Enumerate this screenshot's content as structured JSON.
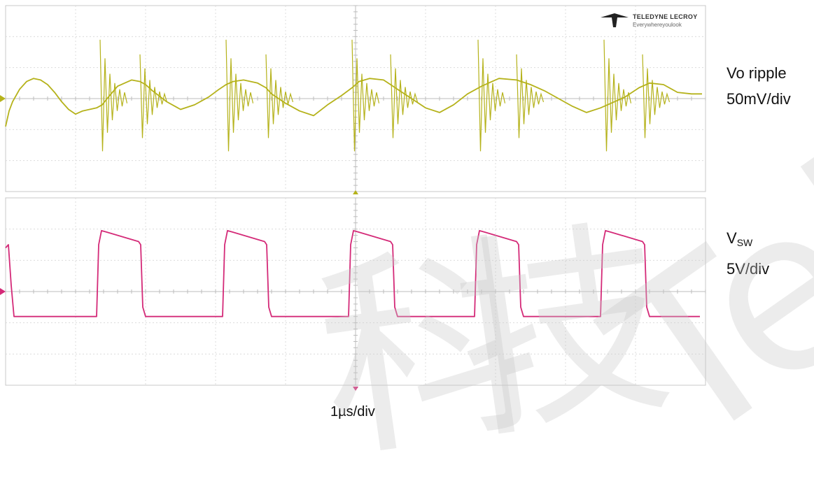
{
  "chart_data": {
    "type": "line",
    "grid": true,
    "divisions": {
      "x": 10,
      "y_per_panel": 6
    },
    "time_scale": "1µs/div",
    "panels": [
      {
        "name_main": "Vo ripple",
        "name_sub": "",
        "scale": "50mV/div",
        "color": "#b5b21a",
        "series": {
          "x_div": [
            0,
            0.05,
            0.1,
            0.2,
            0.3,
            0.4,
            0.5,
            0.6,
            0.7,
            0.8,
            0.9,
            1.0,
            1.1,
            1.2,
            1.3,
            1.38,
            1.45,
            1.6,
            1.8,
            1.92,
            2.0,
            2.1,
            2.3,
            2.5,
            2.7,
            2.9,
            3.05,
            3.15,
            3.25,
            3.4,
            3.6,
            3.72,
            3.8,
            4.0,
            4.2,
            4.4,
            4.6,
            4.8,
            4.95,
            5.05,
            5.2,
            5.4,
            5.5,
            5.6,
            5.8,
            6.0,
            6.2,
            6.4,
            6.6,
            6.8,
            6.95,
            7.05,
            7.3,
            7.5,
            7.7,
            7.9,
            8.1,
            8.3,
            8.5,
            8.65,
            8.85,
            9.05,
            9.2,
            9.4,
            9.6,
            9.8,
            9.95
          ],
          "y_div": [
            -0.9,
            -0.4,
            -0.1,
            0.3,
            0.55,
            0.65,
            0.6,
            0.45,
            0.2,
            -0.1,
            -0.35,
            -0.5,
            -0.4,
            -0.35,
            -0.3,
            -0.2,
            0.0,
            0.4,
            0.6,
            0.55,
            0.45,
            0.25,
            -0.1,
            -0.35,
            -0.2,
            0.05,
            0.3,
            0.45,
            0.55,
            0.6,
            0.5,
            0.35,
            0.15,
            -0.15,
            -0.4,
            -0.55,
            -0.2,
            0.1,
            0.35,
            0.55,
            0.65,
            0.6,
            0.45,
            0.3,
            0.0,
            -0.3,
            -0.45,
            -0.2,
            0.15,
            0.4,
            0.55,
            0.65,
            0.6,
            0.45,
            0.25,
            0.0,
            -0.25,
            -0.45,
            -0.3,
            -0.15,
            0.05,
            0.35,
            0.5,
            0.45,
            0.2,
            0.15,
            0.15
          ],
          "spikes_x_div": [
            1.35,
            1.92,
            3.15,
            3.72,
            4.95,
            5.5,
            6.75,
            7.3,
            8.55,
            9.1
          ]
        }
      },
      {
        "name_main": "V",
        "name_sub": "SW",
        "scale": "5V/div",
        "color": "#d42a78",
        "series": {
          "x_div": [
            0,
            0.04,
            0.08,
            0.12,
            1.3,
            1.33,
            1.37,
            1.45,
            1.9,
            1.93,
            1.96,
            2.0,
            3.1,
            3.13,
            3.17,
            3.25,
            3.7,
            3.73,
            3.76,
            3.8,
            4.9,
            4.93,
            4.97,
            5.05,
            5.5,
            5.53,
            5.56,
            5.6,
            6.7,
            6.73,
            6.77,
            6.85,
            7.3,
            7.33,
            7.36,
            7.4,
            8.5,
            8.53,
            8.57,
            8.65,
            9.1,
            9.13,
            9.16,
            9.2,
            9.92
          ],
          "y_div": [
            1.4,
            1.5,
            0.2,
            -0.8,
            -0.8,
            1.5,
            1.95,
            1.9,
            1.6,
            1.5,
            -0.5,
            -0.8,
            -0.8,
            1.5,
            1.95,
            1.9,
            1.6,
            1.5,
            -0.5,
            -0.8,
            -0.8,
            1.5,
            1.95,
            1.9,
            1.6,
            1.5,
            -0.5,
            -0.8,
            -0.8,
            1.5,
            1.95,
            1.9,
            1.6,
            1.5,
            -0.5,
            -0.8,
            -0.8,
            1.5,
            1.95,
            1.9,
            1.6,
            1.5,
            -0.5,
            -0.8,
            -0.8
          ]
        }
      }
    ]
  },
  "brand": {
    "name": "TELEDYNE LECROY",
    "tagline": "Everywhereyoulook"
  },
  "watermark": {
    "glyphs": [
      "科",
      "技",
      "Tel"
    ]
  }
}
